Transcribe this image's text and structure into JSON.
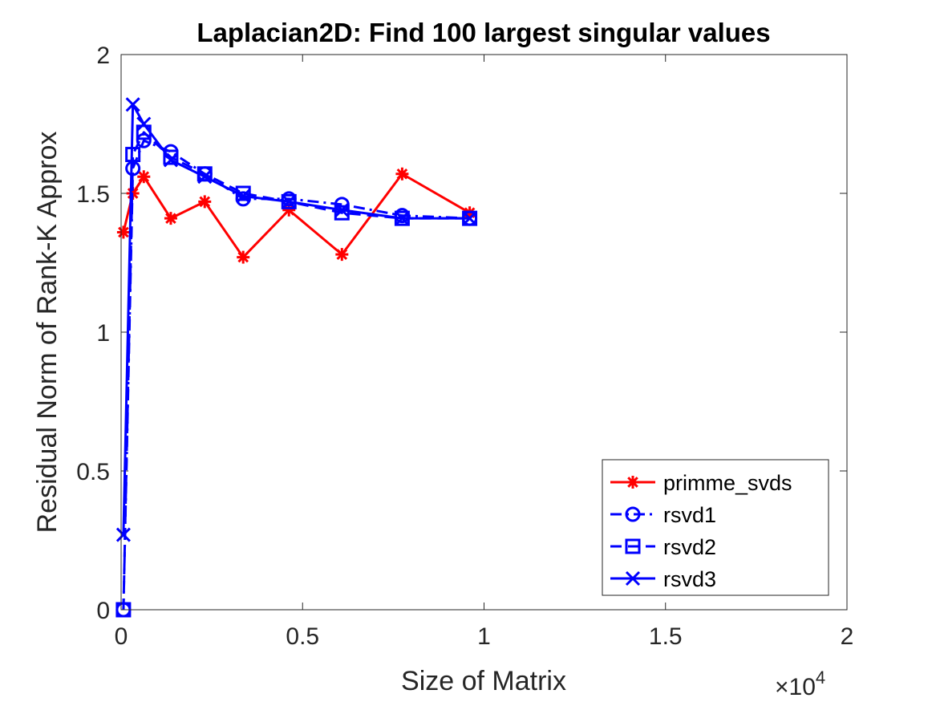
{
  "chart_data": {
    "type": "line",
    "title": "Laplacian2D: Find 100 largest singular values",
    "xlabel": "Size of Matrix",
    "ylabel": "Residual Norm of Rank-K Approx",
    "x_exponent_base": "×10",
    "x_exponent_power": "4",
    "xlim": [
      0,
      2
    ],
    "ylim": [
      0,
      2
    ],
    "xticks": [
      0,
      0.5,
      1,
      1.5,
      2
    ],
    "xtick_labels": [
      "0",
      "0.5",
      "1",
      "1.5",
      "2"
    ],
    "yticks": [
      0,
      0.5,
      1,
      1.5,
      2
    ],
    "ytick_labels": [
      "0",
      "0.5",
      "1",
      "1.5",
      "2"
    ],
    "grid": false,
    "legend_position": "bottom-right",
    "series": [
      {
        "name": "primme_svds",
        "color": "#ff0000",
        "marker": "asterisk",
        "linestyle": "solid",
        "x": [
          0.0064,
          0.0324,
          0.0625,
          0.1369,
          0.2304,
          0.3364,
          0.4624,
          0.6084,
          0.7744,
          0.9604
        ],
        "y": [
          1.36,
          1.5,
          1.56,
          1.41,
          1.47,
          1.27,
          1.44,
          1.28,
          1.57,
          1.43
        ]
      },
      {
        "name": "rsvd1",
        "color": "#0000ff",
        "marker": "circle",
        "linestyle": "dashdot",
        "x": [
          0.0064,
          0.0324,
          0.0625,
          0.1369,
          0.2304,
          0.3364,
          0.4624,
          0.6084,
          0.7744,
          0.9604
        ],
        "y": [
          0.0,
          1.59,
          1.69,
          1.65,
          1.57,
          1.48,
          1.48,
          1.46,
          1.42,
          1.41
        ]
      },
      {
        "name": "rsvd2",
        "color": "#0000ff",
        "marker": "square",
        "linestyle": "dashed",
        "x": [
          0.0064,
          0.0324,
          0.0625,
          0.1369,
          0.2304,
          0.3364,
          0.4624,
          0.6084,
          0.7744,
          0.9604
        ],
        "y": [
          0.0,
          1.64,
          1.72,
          1.63,
          1.57,
          1.5,
          1.47,
          1.43,
          1.41,
          1.41
        ]
      },
      {
        "name": "rsvd3",
        "color": "#0000ff",
        "marker": "x",
        "linestyle": "solid",
        "x": [
          0.0064,
          0.0324,
          0.0625,
          0.1369,
          0.2304,
          0.3364,
          0.4624,
          0.6084,
          0.7744,
          0.9604
        ],
        "y": [
          0.27,
          1.82,
          1.75,
          1.62,
          1.56,
          1.49,
          1.47,
          1.44,
          1.41,
          1.41
        ]
      }
    ]
  }
}
